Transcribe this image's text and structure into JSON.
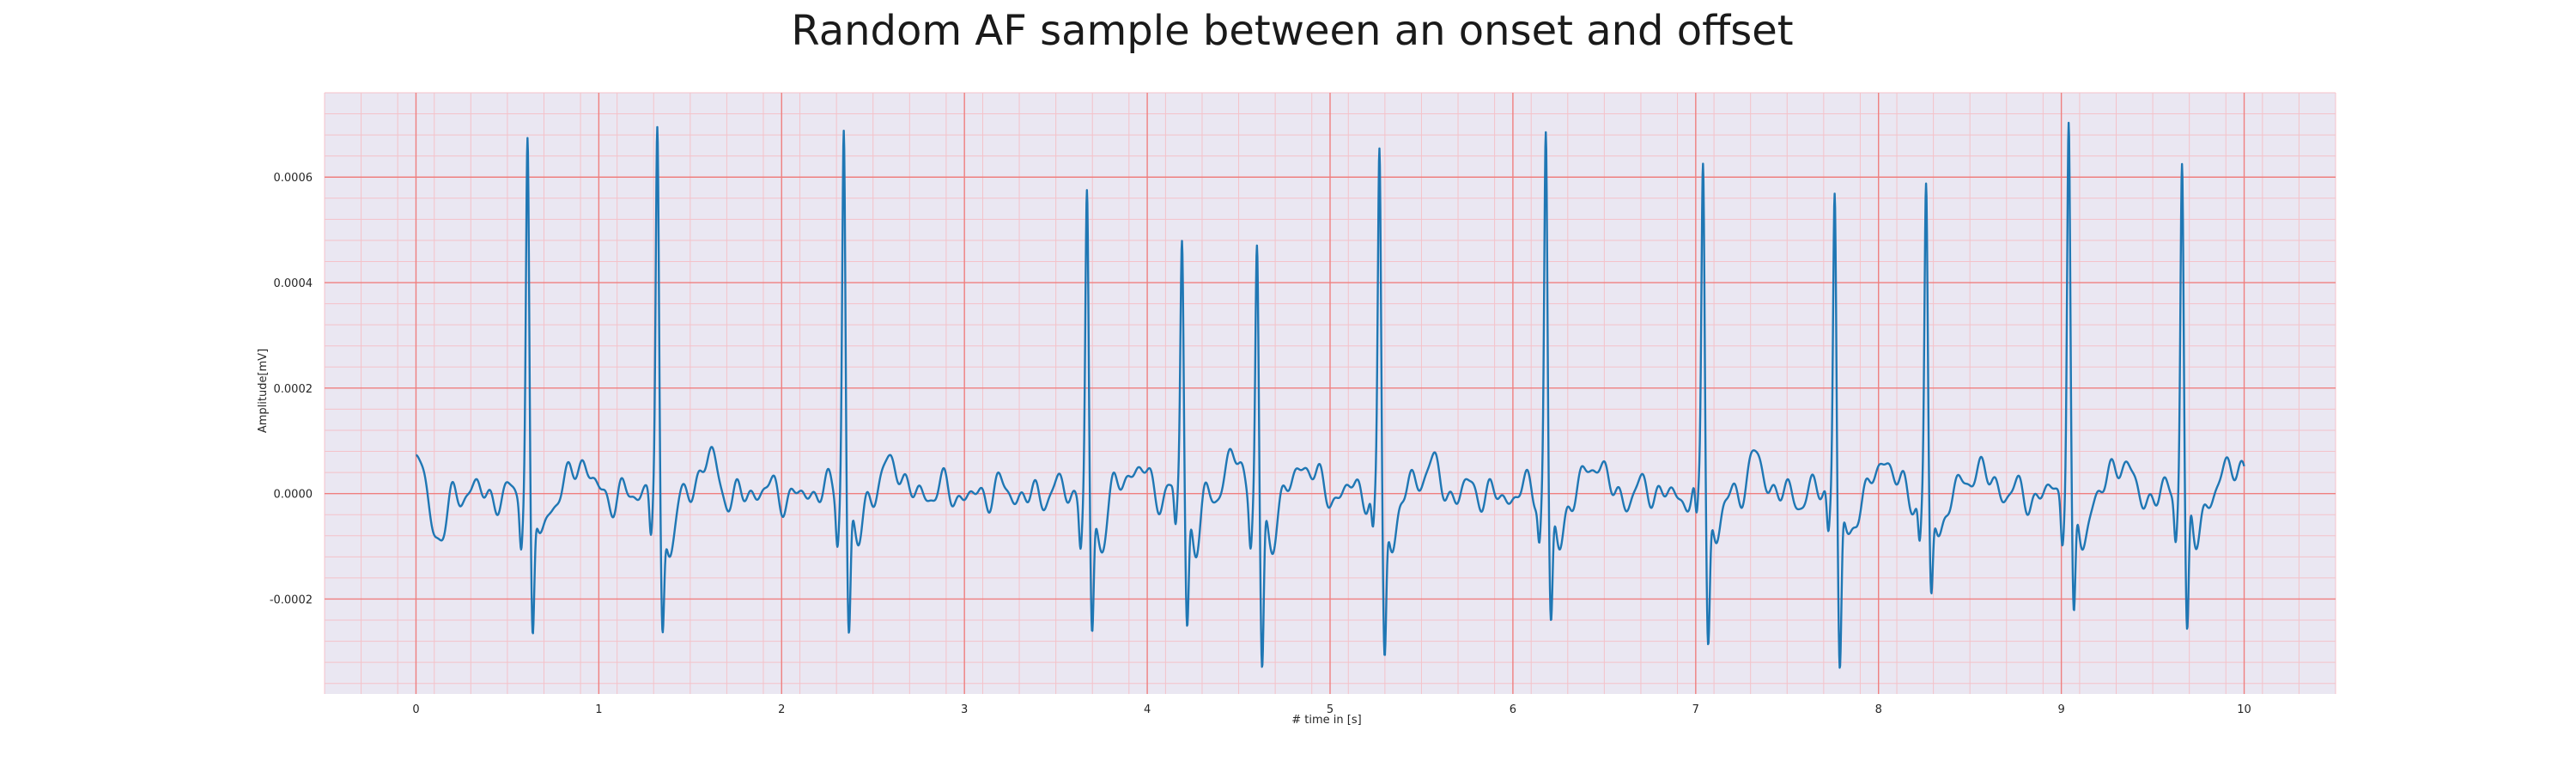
{
  "chart_data": {
    "type": "line",
    "title": "Random AF sample between an onset and offset",
    "xlabel": "# time in [s]",
    "ylabel": "Amplitude[mV]",
    "xlim": [
      -0.5,
      10.5
    ],
    "ylim": [
      -0.00038,
      0.00076
    ],
    "x_ticks": [
      0,
      1,
      2,
      3,
      4,
      5,
      6,
      7,
      8,
      9,
      10
    ],
    "x_tick_labels": [
      "0",
      "1",
      "2",
      "3",
      "4",
      "5",
      "6",
      "7",
      "8",
      "9",
      "10"
    ],
    "y_ticks": [
      -0.0002,
      0.0,
      0.0002,
      0.0004,
      0.0006
    ],
    "y_tick_labels": [
      "-0.0002",
      "0.0000",
      "0.0002",
      "0.0004",
      "0.0006"
    ],
    "grid": true,
    "background_color": "#eae7f2",
    "major_grid_color": "#ef7f7f",
    "minor_grid_color": "#f4c2c9",
    "series": [
      {
        "color": "#1f77b4",
        "sampling": "reconstructed from visible R-peaks, S-troughs and baseline fluctuation",
        "r_peaks": [
          {
            "t": 0.61,
            "r": 0.00066,
            "s": -0.00027
          },
          {
            "t": 1.32,
            "r": 0.000668,
            "s": -0.00025
          },
          {
            "t": 2.34,
            "r": 0.000712,
            "s": -0.00025
          },
          {
            "t": 3.67,
            "r": 0.000568,
            "s": -0.00026
          },
          {
            "t": 4.19,
            "r": 0.00048,
            "s": -0.00024
          },
          {
            "t": 4.6,
            "r": 0.000472,
            "s": -0.00033
          },
          {
            "t": 5.27,
            "r": 0.00065,
            "s": -0.00029
          },
          {
            "t": 6.18,
            "r": 0.000682,
            "s": -0.00024
          },
          {
            "t": 7.04,
            "r": 0.00063,
            "s": -0.00027
          },
          {
            "t": 7.76,
            "r": 0.000585,
            "s": -0.00033
          },
          {
            "t": 8.26,
            "r": 0.000578,
            "s": -0.00019
          },
          {
            "t": 9.04,
            "r": 0.000702,
            "s": -0.00025
          },
          {
            "t": 9.66,
            "r": 0.000638,
            "s": -0.00028
          }
        ],
        "baseline_start": 7e-05,
        "baseline_amplitude": 4e-05
      }
    ]
  }
}
